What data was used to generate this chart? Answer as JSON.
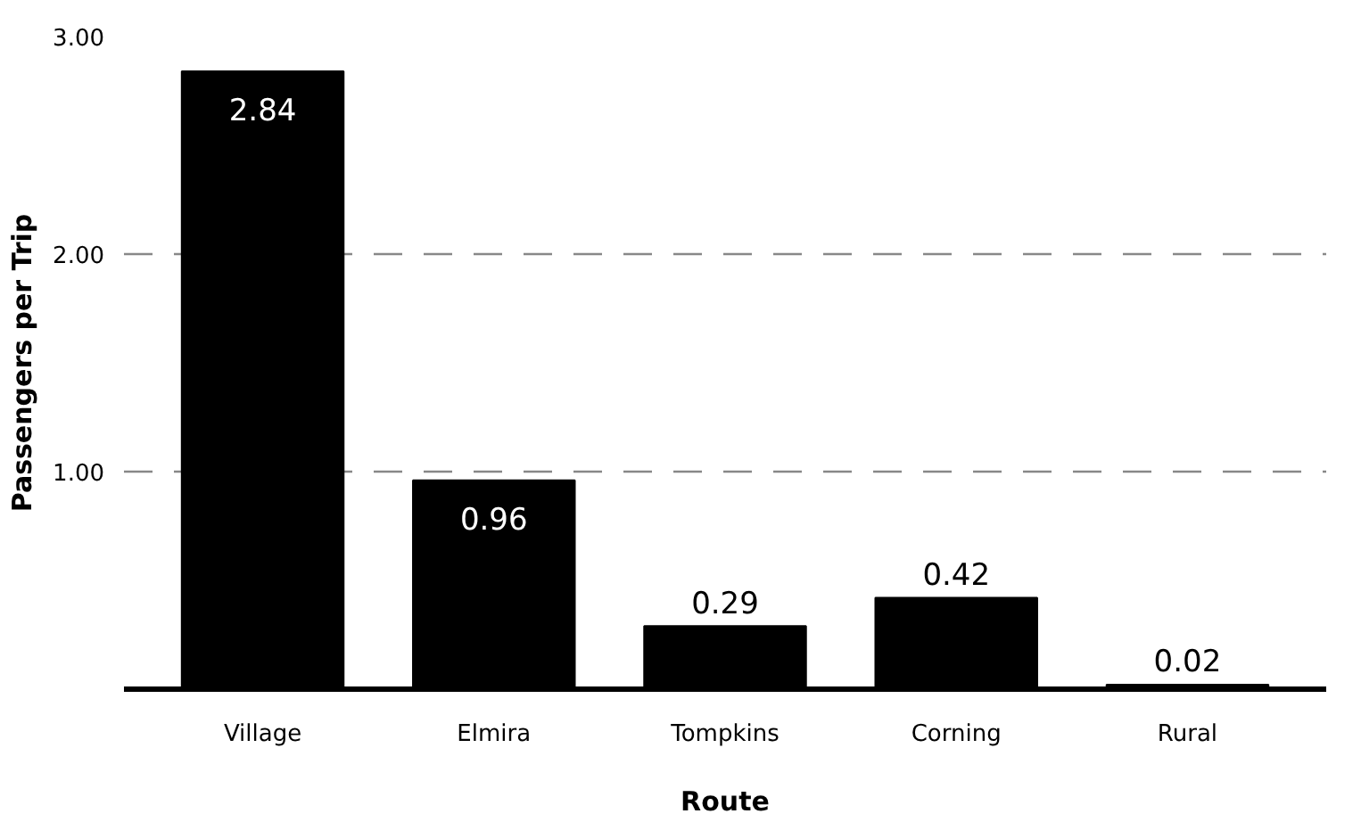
{
  "chart_data": {
    "type": "bar",
    "xlabel": "Route",
    "ylabel": "Passengers per Trip",
    "categories": [
      "Village",
      "Elmira",
      "Tompkins",
      "Corning",
      "Rural"
    ],
    "values": [
      2.84,
      0.96,
      0.29,
      0.42,
      0.02
    ],
    "color": "#000000",
    "ylim": [
      0,
      3.0
    ],
    "yticks": [
      {
        "value": 1,
        "label": "1.00"
      },
      {
        "value": 2,
        "label": "2.00"
      },
      {
        "value": 3,
        "label": "3.00"
      }
    ],
    "grid": "y",
    "data_labels": true
  }
}
